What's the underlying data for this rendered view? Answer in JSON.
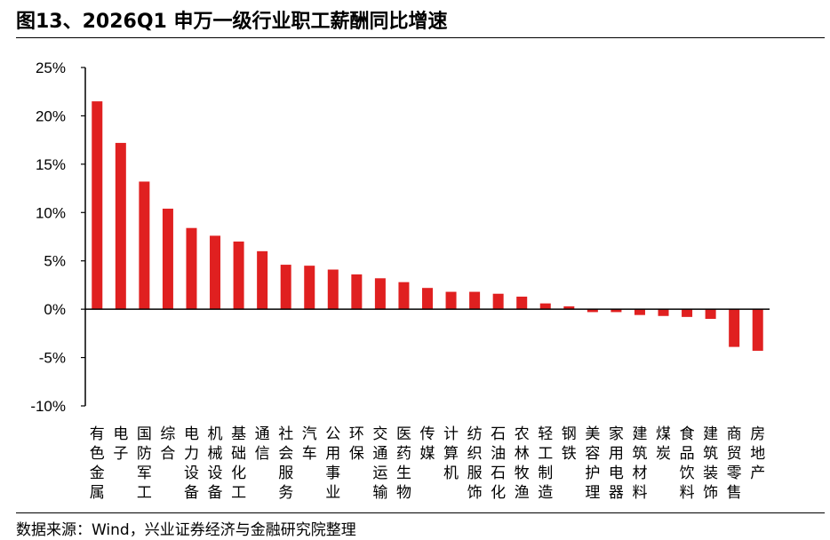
{
  "header": {
    "title": "图13、2026Q1 申万一级行业职工薪酬同比增速"
  },
  "footer": {
    "source": "数据来源：Wind，兴业证券经济与金融研究院整理"
  },
  "chart_data": {
    "type": "bar",
    "title": "图13、2026Q1 申万一级行业职工薪酬同比增速",
    "xlabel": "",
    "ylabel": "",
    "ylim": [
      -10,
      25
    ],
    "yticks": [
      25,
      20,
      15,
      10,
      5,
      0,
      -5,
      -10
    ],
    "ytick_labels": [
      "25%",
      "20%",
      "15%",
      "10%",
      "5%",
      "0%",
      "-5%",
      "-10%"
    ],
    "grid": false,
    "bar_color": "#e02020",
    "categories": [
      "有色金属",
      "电子",
      "国防军工",
      "综合",
      "电力设备",
      "机械设备",
      "基础化工",
      "通信",
      "社会服务",
      "汽车",
      "公用事业",
      "环保",
      "交通运输",
      "医药生物",
      "传媒",
      "计算机",
      "纺织服饰",
      "石油石化",
      "农林牧渔",
      "轻工制造",
      "钢铁",
      "美容护理",
      "家用电器",
      "建筑材料",
      "煤炭",
      "食品饮料",
      "建筑装饰",
      "商贸零售",
      "房地产"
    ],
    "values": [
      21.5,
      17.2,
      13.2,
      10.4,
      8.4,
      7.6,
      7.0,
      6.0,
      4.6,
      4.5,
      4.1,
      3.6,
      3.2,
      2.8,
      2.2,
      1.8,
      1.8,
      1.6,
      1.3,
      0.6,
      0.3,
      -0.3,
      -0.3,
      -0.6,
      -0.7,
      -0.8,
      -1.0,
      -3.9,
      -4.3
    ]
  }
}
